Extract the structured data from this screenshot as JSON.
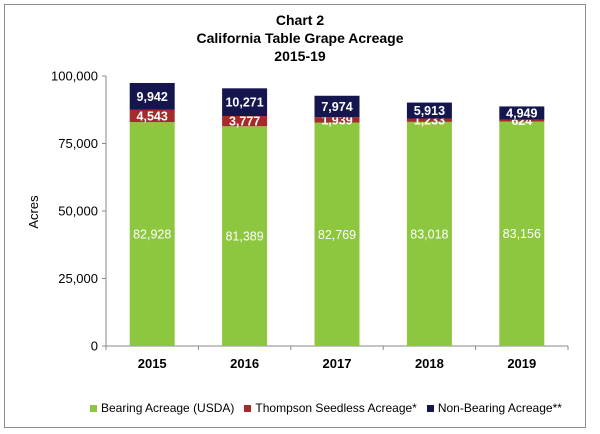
{
  "chart_data": {
    "type": "bar",
    "stacked": true,
    "title_lines": [
      "Chart 2",
      "California Table Grape Acreage",
      "2015-19"
    ],
    "xlabel": "",
    "ylabel": "Acres",
    "ylim": [
      0,
      100000
    ],
    "yticks": [
      "0",
      "25,000",
      "50,000",
      "75,000",
      "100,000"
    ],
    "ytick_values": [
      0,
      25000,
      50000,
      75000,
      100000
    ],
    "categories": [
      "2015",
      "2016",
      "2017",
      "2018",
      "2019"
    ],
    "series": [
      {
        "name": "Bearing Acreage (USDA)",
        "color": "#8dc63f",
        "values": [
          82928,
          81389,
          82769,
          83018,
          83156
        ],
        "labels": [
          "82,928",
          "81,389",
          "82,769",
          "83,018",
          "83,156"
        ]
      },
      {
        "name": "Thompson Seedless Acreage*",
        "color": "#a52a2a",
        "values": [
          4543,
          3777,
          1939,
          1233,
          624
        ],
        "labels": [
          "4,543",
          "3,777",
          "1,939",
          "1,233",
          "624"
        ]
      },
      {
        "name": "Non-Bearing Acreage**",
        "color": "#16164f",
        "values": [
          9942,
          10271,
          7974,
          5913,
          4949
        ],
        "labels": [
          "9,942",
          "10,271",
          "7,974",
          "5,913",
          "4,949"
        ]
      }
    ],
    "grid": false,
    "legend_position": "bottom"
  }
}
